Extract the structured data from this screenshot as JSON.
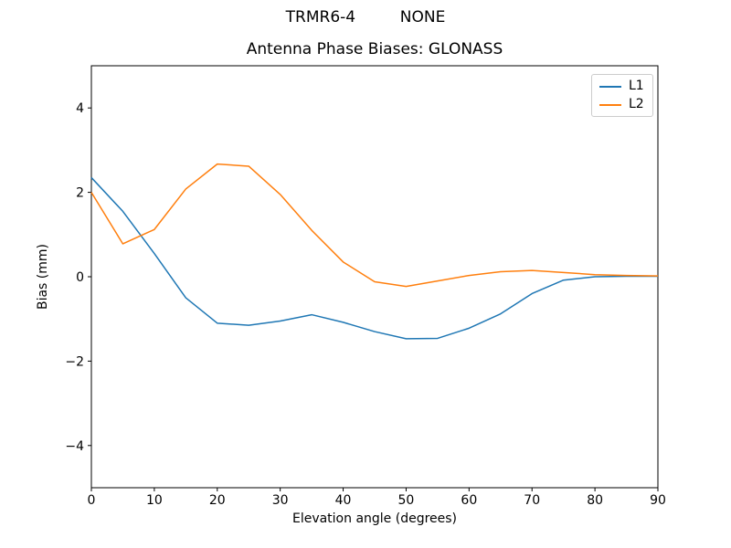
{
  "figure": {
    "suptitle": "TRMR6-4         NONE",
    "title": "Antenna Phase Biases: GLONASS"
  },
  "chart_data": {
    "type": "line",
    "suptitle": "TRMR6-4         NONE",
    "title": "Antenna Phase Biases: GLONASS",
    "xlabel": "Elevation angle (degrees)",
    "ylabel": "Bias (mm)",
    "xlim": [
      0,
      90
    ],
    "ylim": [
      -5,
      5
    ],
    "xticks": [
      0,
      10,
      20,
      30,
      40,
      50,
      60,
      70,
      80,
      90
    ],
    "xtick_labels": [
      "0",
      "10",
      "20",
      "30",
      "40",
      "50",
      "60",
      "70",
      "80",
      "90"
    ],
    "yticks": [
      -4,
      -2,
      0,
      2,
      4
    ],
    "ytick_labels": [
      "−4",
      "−2",
      "0",
      "2",
      "4"
    ],
    "grid": false,
    "legend_position": "upper right",
    "x": [
      0,
      5,
      10,
      15,
      20,
      25,
      30,
      35,
      40,
      45,
      50,
      55,
      60,
      65,
      70,
      75,
      80,
      85,
      90
    ],
    "series": [
      {
        "name": "L1",
        "color": "#1f77b4",
        "values": [
          2.35,
          1.55,
          0.55,
          -0.5,
          -1.1,
          -1.15,
          -1.05,
          -0.9,
          -1.08,
          -1.3,
          -1.47,
          -1.46,
          -1.22,
          -0.88,
          -0.4,
          -0.08,
          0.0,
          0.01,
          0.01
        ]
      },
      {
        "name": "L2",
        "color": "#ff7f0e",
        "values": [
          2.0,
          0.78,
          1.12,
          2.08,
          2.67,
          2.62,
          1.95,
          1.1,
          0.35,
          -0.12,
          -0.23,
          -0.1,
          0.03,
          0.12,
          0.15,
          0.1,
          0.05,
          0.03,
          0.02
        ]
      }
    ]
  }
}
